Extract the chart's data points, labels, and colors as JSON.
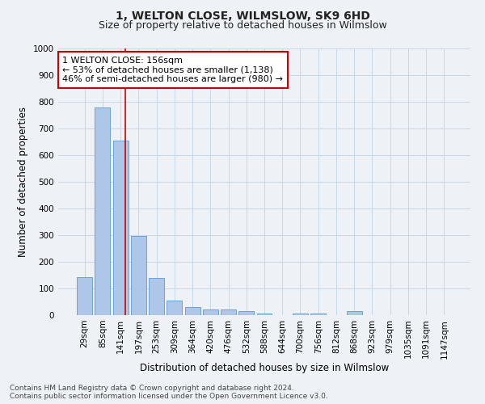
{
  "title": "1, WELTON CLOSE, WILMSLOW, SK9 6HD",
  "subtitle": "Size of property relative to detached houses in Wilmslow",
  "xlabel": "Distribution of detached houses by size in Wilmslow",
  "ylabel": "Number of detached properties",
  "footer_line1": "Contains HM Land Registry data © Crown copyright and database right 2024.",
  "footer_line2": "Contains public sector information licensed under the Open Government Licence v3.0.",
  "bar_labels": [
    "29sqm",
    "85sqm",
    "141sqm",
    "197sqm",
    "253sqm",
    "309sqm",
    "364sqm",
    "420sqm",
    "476sqm",
    "532sqm",
    "588sqm",
    "644sqm",
    "700sqm",
    "756sqm",
    "812sqm",
    "868sqm",
    "923sqm",
    "979sqm",
    "1035sqm",
    "1091sqm",
    "1147sqm"
  ],
  "bar_values": [
    143,
    779,
    655,
    296,
    138,
    56,
    29,
    21,
    21,
    14,
    7,
    0,
    7,
    7,
    0,
    14,
    0,
    0,
    0,
    0,
    0
  ],
  "bar_color": "#aec6e8",
  "bar_edge_color": "#5b9bd5",
  "property_line_x": 2.27,
  "annotation_text_line1": "1 WELTON CLOSE: 156sqm",
  "annotation_text_line2": "← 53% of detached houses are smaller (1,138)",
  "annotation_text_line3": "46% of semi-detached houses are larger (980) →",
  "annotation_box_color": "#ffffff",
  "annotation_box_edge": "#cc0000",
  "vline_color": "#cc0000",
  "ylim": [
    0,
    1000
  ],
  "yticks": [
    0,
    100,
    200,
    300,
    400,
    500,
    600,
    700,
    800,
    900,
    1000
  ],
  "grid_color": "#c8d8e8",
  "background_color": "#eef2f7",
  "title_fontsize": 10,
  "subtitle_fontsize": 9,
  "axis_label_fontsize": 8.5,
  "tick_fontsize": 7.5,
  "annotation_fontsize": 8,
  "footer_fontsize": 6.5
}
